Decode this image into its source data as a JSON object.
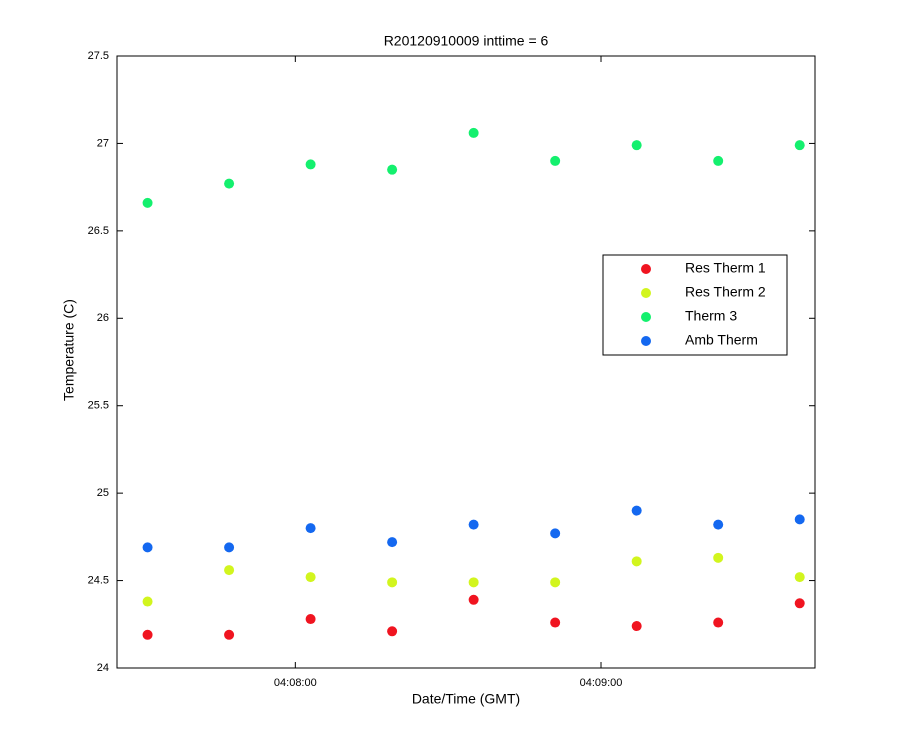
{
  "chart_data": {
    "type": "scatter",
    "title": "R20120910009 inttime = 6",
    "x_label": "Date/Time (GMT)",
    "y_label": "Temperature (C)",
    "x": [
      "04:07:31",
      "04:07:47",
      "04:08:03",
      "04:08:19",
      "04:08:35",
      "04:08:51",
      "04:09:07",
      "04:09:23",
      "04:09:39"
    ],
    "xlim": [
      "04:07:25",
      "04:09:42"
    ],
    "xticks": [
      "04:08:00",
      "04:09:00"
    ],
    "ylim": [
      24,
      27.5
    ],
    "yticks": [
      24,
      24.5,
      25,
      25.5,
      26,
      26.5,
      27,
      27.5
    ],
    "grid": false,
    "legend": "east",
    "series": [
      {
        "name": "Res Therm 1",
        "color": "#f01420",
        "values": [
          24.19,
          24.19,
          24.28,
          24.21,
          24.39,
          24.26,
          24.24,
          24.26,
          24.37
        ]
      },
      {
        "name": "Res Therm 2",
        "color": "#d2f51e",
        "values": [
          24.38,
          24.56,
          24.52,
          24.49,
          24.49,
          24.49,
          24.61,
          24.63,
          24.52
        ]
      },
      {
        "name": "Therm 3",
        "color": "#14f06e",
        "values": [
          26.66,
          26.77,
          26.88,
          26.85,
          27.06,
          26.9,
          26.99,
          26.9,
          26.99
        ]
      },
      {
        "name": "Amb Therm",
        "color": "#1468f0",
        "values": [
          24.69,
          24.69,
          24.8,
          24.72,
          24.82,
          24.77,
          24.9,
          24.82,
          24.85
        ]
      }
    ]
  }
}
